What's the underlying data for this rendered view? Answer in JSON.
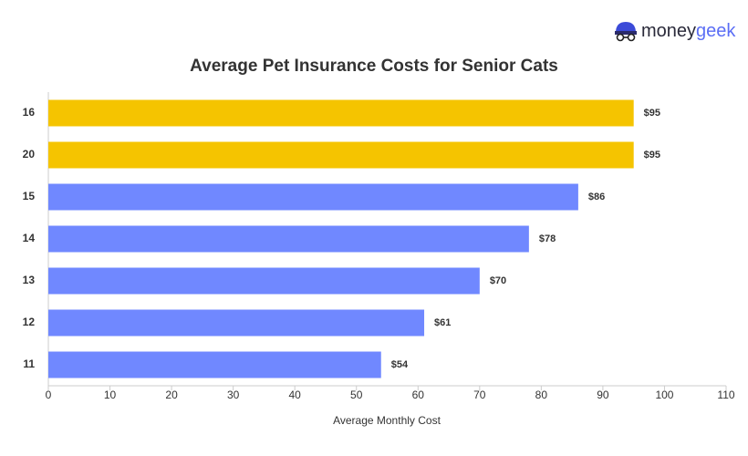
{
  "chart_data": {
    "type": "bar",
    "orientation": "horizontal",
    "title": "Average Pet Insurance Costs for Senior Cats",
    "x_label": "Average Monthly Cost",
    "logo": [
      "money",
      "geek"
    ],
    "categories": [
      "16",
      "20",
      "15",
      "14",
      "13",
      "12",
      "11"
    ],
    "values": [
      95,
      95,
      86,
      78,
      70,
      61,
      54
    ],
    "value_labels": [
      "$95",
      "$95",
      "$86",
      "$78",
      "$70",
      "$61",
      "$54"
    ],
    "colors": [
      "#f5c400",
      "#f5c400",
      "#7088ff",
      "#7088ff",
      "#7088ff",
      "#7088ff",
      "#7088ff"
    ],
    "xlim": [
      0,
      110
    ],
    "xticks": [
      0,
      10,
      20,
      30,
      40,
      50,
      60,
      70,
      80,
      90,
      100,
      110
    ]
  }
}
